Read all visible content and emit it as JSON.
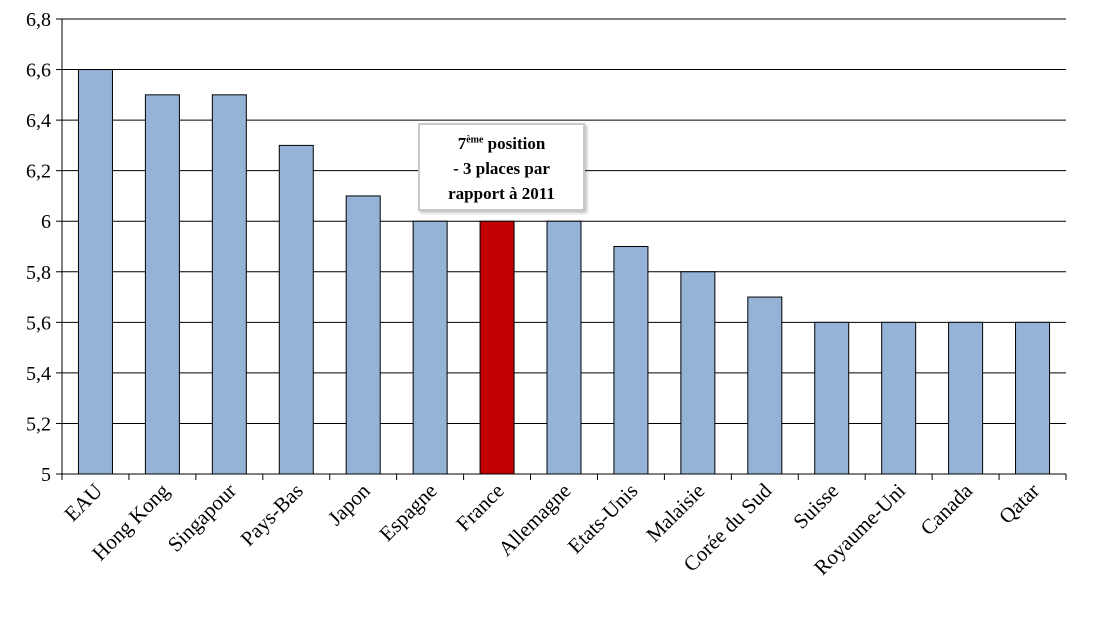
{
  "chart_data": {
    "type": "bar",
    "categories": [
      "EAU",
      "Hong Kong",
      "Singapour",
      "Pays-Bas",
      "Japon",
      "Espagne",
      "France",
      "Allemagne",
      "Etats-Unis",
      "Malaisie",
      "Corée du Sud",
      "Suisse",
      "Royaume-Uni",
      "Canada",
      "Qatar"
    ],
    "values": [
      6.6,
      6.5,
      6.5,
      6.3,
      6.1,
      6.0,
      6.0,
      6.0,
      5.9,
      5.8,
      5.7,
      5.6,
      5.6,
      5.6,
      5.6
    ],
    "highlight_category": "France",
    "colors": {
      "bar": "#95b3d7",
      "bar_border": "#000000",
      "highlight": "#c00000",
      "grid": "#000000"
    },
    "ylim": [
      5,
      6.8
    ],
    "ytick_labels": [
      "5",
      "5,2",
      "5,4",
      "5,6",
      "5,8",
      "6",
      "6,2",
      "6,4",
      "6,6",
      "6,8"
    ],
    "grid": true,
    "title": "",
    "xlabel": "",
    "ylabel": ""
  },
  "annotation": {
    "line1_main": "7",
    "line1_sup": "ème",
    "line1_rest": " position",
    "line2": "- 3 places par",
    "line3": "rapport à 2011"
  }
}
